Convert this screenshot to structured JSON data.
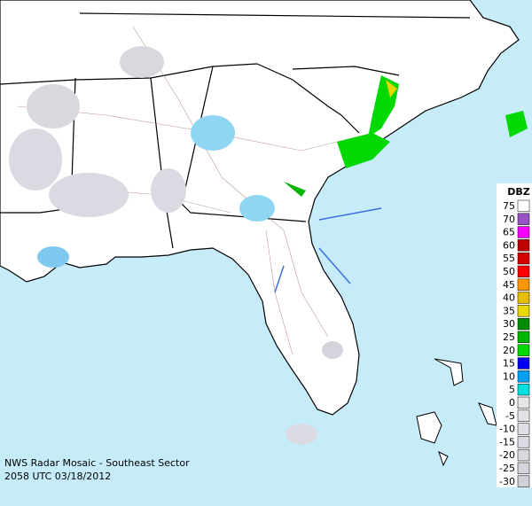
{
  "caption": {
    "title": "NWS Radar Mosaic - Southeast Sector",
    "timestamp": "2058 UTC 03/18/2012"
  },
  "legend": {
    "title": "DBZ",
    "entries": [
      {
        "value": 75,
        "color": "#ffffff"
      },
      {
        "value": 70,
        "color": "#9854c6"
      },
      {
        "value": 65,
        "color": "#f800fd"
      },
      {
        "value": 60,
        "color": "#bc0000"
      },
      {
        "value": 55,
        "color": "#d40000"
      },
      {
        "value": 50,
        "color": "#fd0000"
      },
      {
        "value": 45,
        "color": "#fd9500"
      },
      {
        "value": 40,
        "color": "#e5bc00"
      },
      {
        "value": 35,
        "color": "#e8d800"
      },
      {
        "value": 30,
        "color": "#008e00"
      },
      {
        "value": 25,
        "color": "#01b501"
      },
      {
        "value": 20,
        "color": "#02d802"
      },
      {
        "value": 15,
        "color": "#0300f4"
      },
      {
        "value": 10,
        "color": "#019ff4"
      },
      {
        "value": 5,
        "color": "#04e0e0"
      },
      {
        "value": 0,
        "color": "#e6e6e6"
      },
      {
        "value": -5,
        "color": "#e2e2e6"
      },
      {
        "value": -10,
        "color": "#dedee4"
      },
      {
        "value": -15,
        "color": "#dadae2"
      },
      {
        "value": -20,
        "color": "#d8d8de"
      },
      {
        "value": -25,
        "color": "#d4d4dc"
      },
      {
        "value": -30,
        "color": "#d0d0d8"
      }
    ]
  }
}
